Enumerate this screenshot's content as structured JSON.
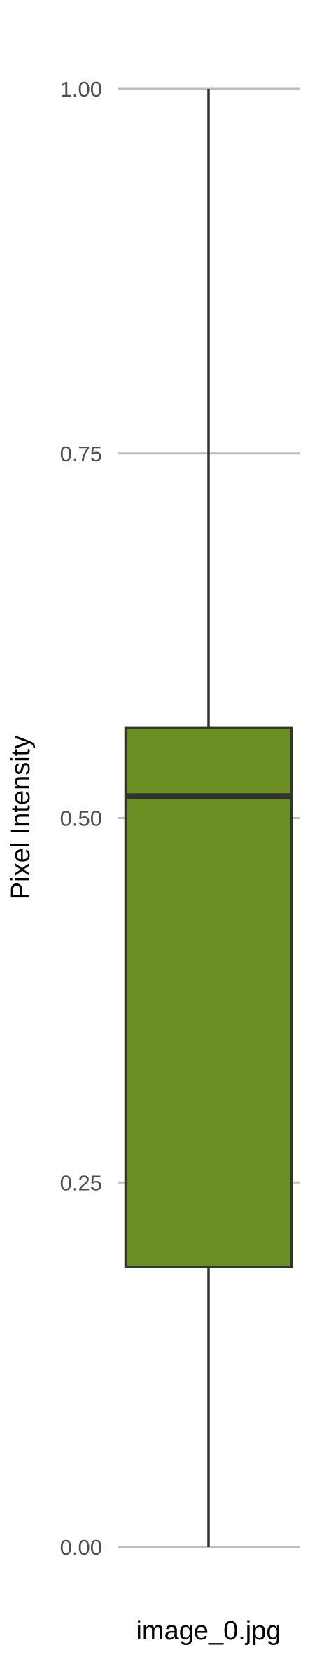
{
  "chart_data": {
    "type": "box",
    "title": "",
    "xlabel": "",
    "ylabel": "Pixel Intensity",
    "ylim": [
      0,
      1
    ],
    "grid": true,
    "y_ticks": [
      {
        "value": 0.0,
        "label": "0.00"
      },
      {
        "value": 0.25,
        "label": "0.25"
      },
      {
        "value": 0.5,
        "label": "0.50"
      },
      {
        "value": 0.75,
        "label": "0.75"
      },
      {
        "value": 1.0,
        "label": "1.00"
      }
    ],
    "categories": [
      "image_0.jpg"
    ],
    "series": [
      {
        "category": "image_0.jpg",
        "min": 0.0,
        "q1": 0.192,
        "median": 0.515,
        "q3": 0.562,
        "max": 1.0,
        "fill_color": "#6b8e23"
      }
    ],
    "colors": {
      "box_fill": "#6b8e23",
      "box_stroke": "#333333",
      "grid": "#bebebe",
      "tick_label": "#4d4d4d"
    }
  }
}
